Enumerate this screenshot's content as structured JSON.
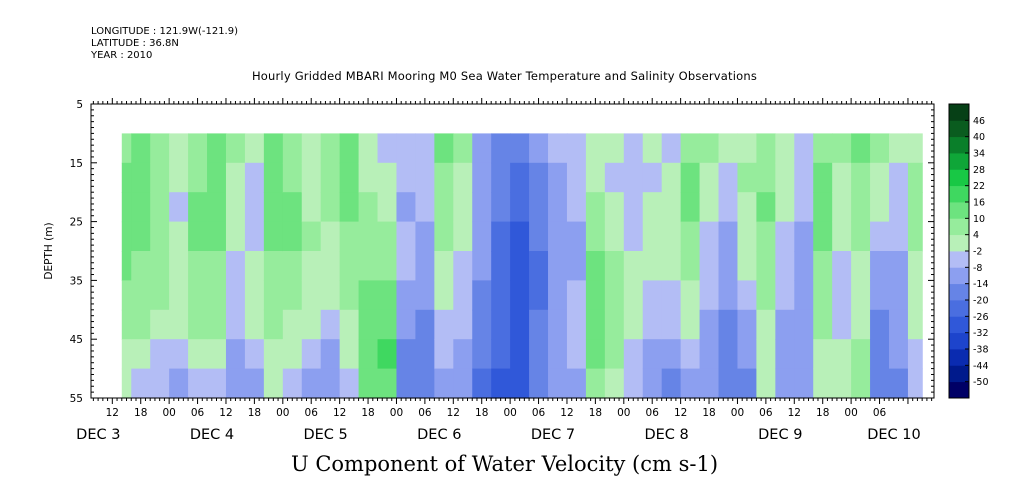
{
  "header": {
    "longitude": "LONGITUDE : 121.9W(-121.9)",
    "latitude": "LATITUDE : 36.8N",
    "year": "YEAR : 2010"
  },
  "title": "Hourly Gridded MBARI Mooring M0 Sea Water Temperature and Salinity Observations",
  "footer_label": "U Component of Water Velocity (cm s-1)",
  "chart_data": {
    "type": "heatmap",
    "title": "Hourly Gridded MBARI Mooring M0 Sea Water Temperature and Salinity Observations",
    "xlabel": "",
    "ylabel": "DEPTH (m)",
    "variable_label": "U Component of Water Velocity (cm s-1)",
    "ylim": [
      55,
      5
    ],
    "y_ticks": [
      5,
      15,
      25,
      35,
      45,
      55
    ],
    "data_depth_range": [
      10,
      55
    ],
    "x_hour_ticks": [
      "12",
      "18",
      "00",
      "06",
      "12",
      "18",
      "00",
      "06",
      "12",
      "18",
      "00",
      "06",
      "12",
      "18",
      "00",
      "06",
      "12",
      "18",
      "00",
      "06",
      "12",
      "18",
      "00",
      "06",
      "12",
      "18",
      "00",
      "06"
    ],
    "x_day_labels": [
      "DEC  3",
      "DEC  4",
      "DEC  5",
      "DEC  6",
      "DEC  7",
      "DEC  8",
      "DEC  9",
      "DEC 10"
    ],
    "x_hour_offset_of_first_tick": 12,
    "x_range_hours": [
      7.5,
      185.5
    ],
    "data_time_range_hours": [
      14,
      183
    ],
    "colorbar_levels": [
      -50,
      -44,
      -38,
      -32,
      -26,
      -20,
      -14,
      -8,
      -2,
      4,
      10,
      16,
      22,
      28,
      34,
      40,
      46
    ],
    "colorbar_colors": [
      "#000066",
      "#001a8c",
      "#0a2bb0",
      "#1d44cc",
      "#3058d9",
      "#4a6ee0",
      "#6684e6",
      "#8c9ff0",
      "#b3bdf5",
      "#b8f0b8",
      "#96ec9c",
      "#6de37f",
      "#3fd860",
      "#18c845",
      "#0fa638",
      "#0a7f2a",
      "#0a5c1f",
      "#064016"
    ],
    "columns": [
      {
        "h": 14,
        "v": [
          8,
          10,
          12,
          12,
          10,
          8,
          5,
          2,
          0
        ]
      },
      {
        "h": 18,
        "v": [
          10,
          12,
          12,
          10,
          8,
          6,
          4,
          -2,
          -6
        ]
      },
      {
        "h": 22,
        "v": [
          4,
          6,
          8,
          8,
          6,
          4,
          2,
          -4,
          -8
        ]
      },
      {
        "h": 26,
        "v": [
          0,
          -2,
          -4,
          0,
          2,
          2,
          0,
          -6,
          -10
        ]
      },
      {
        "h": 30,
        "v": [
          6,
          8,
          10,
          10,
          8,
          6,
          4,
          -2,
          -6
        ]
      },
      {
        "h": 34,
        "v": [
          14,
          14,
          12,
          10,
          8,
          6,
          4,
          0,
          -4
        ]
      },
      {
        "h": 38,
        "v": [
          4,
          2,
          0,
          -2,
          -4,
          -6,
          -8,
          -10,
          -12
        ]
      },
      {
        "h": 42,
        "v": [
          -2,
          -4,
          -6,
          -4,
          -2,
          0,
          -2,
          -6,
          -10
        ]
      },
      {
        "h": 46,
        "v": [
          10,
          12,
          12,
          10,
          8,
          6,
          4,
          0,
          -2
        ]
      },
      {
        "h": 50,
        "v": [
          6,
          8,
          10,
          10,
          8,
          6,
          2,
          -2,
          -4
        ]
      },
      {
        "h": 54,
        "v": [
          -2,
          0,
          2,
          4,
          2,
          0,
          -2,
          -6,
          -12
        ]
      },
      {
        "h": 58,
        "v": [
          8,
          6,
          4,
          2,
          0,
          -2,
          -6,
          -10,
          -14
        ]
      },
      {
        "h": 62,
        "v": [
          14,
          12,
          10,
          8,
          6,
          4,
          2,
          -2,
          -6
        ]
      },
      {
        "h": 66,
        "v": [
          0,
          2,
          4,
          6,
          8,
          10,
          12,
          14,
          10
        ]
      },
      {
        "h": 70,
        "v": [
          -4,
          -2,
          0,
          4,
          8,
          10,
          14,
          16,
          12
        ]
      },
      {
        "h": 74,
        "v": [
          -6,
          -8,
          -10,
          -8,
          -6,
          -10,
          -14,
          -18,
          -20
        ]
      },
      {
        "h": 78,
        "v": [
          -4,
          -6,
          -8,
          -10,
          -12,
          -14,
          -16,
          -18,
          -20
        ]
      },
      {
        "h": 82,
        "v": [
          10,
          8,
          6,
          4,
          2,
          0,
          -4,
          -8,
          -12
        ]
      },
      {
        "h": 86,
        "v": [
          4,
          2,
          0,
          -2,
          -4,
          -6,
          -8,
          -10,
          -14
        ]
      },
      {
        "h": 90,
        "v": [
          -10,
          -12,
          -14,
          -12,
          -14,
          -16,
          -18,
          -20,
          -22
        ]
      },
      {
        "h": 94,
        "v": [
          -16,
          -18,
          -20,
          -22,
          -24,
          -24,
          -26,
          -26,
          -28
        ]
      },
      {
        "h": 98,
        "v": [
          -20,
          -22,
          -26,
          -28,
          -30,
          -32,
          -32,
          -30,
          -30
        ]
      },
      {
        "h": 102,
        "v": [
          -14,
          -16,
          -18,
          -20,
          -22,
          -22,
          -20,
          -18,
          -20
        ]
      },
      {
        "h": 106,
        "v": [
          -8,
          -10,
          -12,
          -14,
          -14,
          -12,
          -10,
          -10,
          -12
        ]
      },
      {
        "h": 110,
        "v": [
          -4,
          -6,
          -8,
          -10,
          -10,
          -8,
          -6,
          -8,
          -10
        ]
      },
      {
        "h": 114,
        "v": [
          -2,
          0,
          4,
          8,
          12,
          14,
          12,
          10,
          6
        ]
      },
      {
        "h": 118,
        "v": [
          -2,
          -4,
          -2,
          2,
          6,
          8,
          6,
          4,
          2
        ]
      },
      {
        "h": 122,
        "v": [
          -6,
          -8,
          -6,
          -4,
          -2,
          0,
          -2,
          -4,
          -8
        ]
      },
      {
        "h": 126,
        "v": [
          -2,
          -4,
          -2,
          0,
          -2,
          -4,
          -6,
          -10,
          -14
        ]
      },
      {
        "h": 130,
        "v": [
          -4,
          -2,
          0,
          2,
          0,
          -4,
          -8,
          -12,
          -16
        ]
      },
      {
        "h": 134,
        "v": [
          8,
          10,
          10,
          8,
          6,
          2,
          -2,
          -6,
          -10
        ]
      },
      {
        "h": 138,
        "v": [
          4,
          2,
          0,
          -4,
          -6,
          -8,
          -10,
          -12,
          -14
        ]
      },
      {
        "h": 142,
        "v": [
          -2,
          -4,
          -6,
          -10,
          -12,
          -14,
          -16,
          -18,
          -20
        ]
      },
      {
        "h": 146,
        "v": [
          2,
          4,
          2,
          0,
          -2,
          -6,
          -10,
          -14,
          -18
        ]
      },
      {
        "h": 150,
        "v": [
          6,
          8,
          10,
          8,
          6,
          4,
          2,
          0,
          -2
        ]
      },
      {
        "h": 154,
        "v": [
          2,
          0,
          -2,
          -4,
          -6,
          -8,
          -10,
          -12,
          -14
        ]
      },
      {
        "h": 158,
        "v": [
          -4,
          -6,
          -8,
          -10,
          -12,
          -14,
          -14,
          -12,
          -10
        ]
      },
      {
        "h": 162,
        "v": [
          8,
          10,
          12,
          10,
          8,
          6,
          4,
          2,
          0
        ]
      },
      {
        "h": 166,
        "v": [
          4,
          2,
          0,
          -2,
          -4,
          -6,
          -4,
          -2,
          0
        ]
      },
      {
        "h": 170,
        "v": [
          10,
          8,
          6,
          4,
          2,
          0,
          2,
          4,
          6
        ]
      },
      {
        "h": 174,
        "v": [
          4,
          2,
          -2,
          -6,
          -10,
          -14,
          -16,
          -18,
          -20
        ]
      },
      {
        "h": 178,
        "v": [
          -2,
          -4,
          -6,
          -8,
          -10,
          -12,
          -12,
          -14,
          -16
        ]
      },
      {
        "h": 182,
        "v": [
          2,
          4,
          6,
          4,
          2,
          0,
          -2,
          -4,
          -6
        ]
      }
    ]
  }
}
